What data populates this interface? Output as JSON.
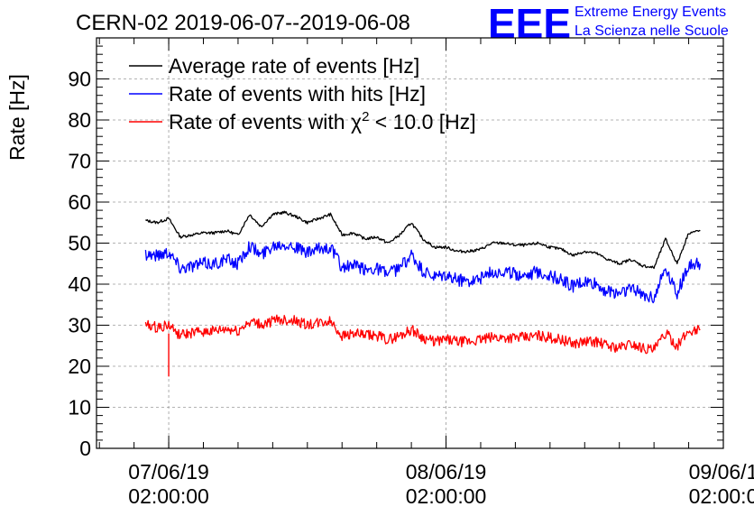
{
  "colors": {
    "average": "#000000",
    "hits": "#0000ff",
    "chi2": "#ff0000",
    "logo": "#0000ff",
    "grid": "#9a9a9a"
  },
  "logo": {
    "mark": "EEE",
    "line1": "Extreme Energy Events",
    "line2": "La Scienza nelle Scuole"
  },
  "chart_data": {
    "type": "line",
    "title": "CERN-02 2019-06-07--2019-06-08",
    "ylabel": "Rate [Hz]",
    "xlabel": "",
    "ylim": [
      0,
      100
    ],
    "yticks": [
      0,
      10,
      20,
      30,
      40,
      50,
      60,
      70,
      80,
      90
    ],
    "xlim": [
      "2019-06-06 19:45",
      "2019-06-09 02:00"
    ],
    "xticks": [
      {
        "date": "07/06/19",
        "time": "02:00:00",
        "at": "2019-06-07 02:00"
      },
      {
        "date": "08/06/19",
        "time": "02:00:00",
        "at": "2019-06-08 02:00"
      },
      {
        "date": "09/06/1",
        "time": "02:00:0",
        "at": "2019-06-09 02:00"
      }
    ],
    "grid": true,
    "legend_position": "top-left",
    "series": [
      {
        "name": "Average rate of events [Hz]",
        "key": "average",
        "x": [
          "2019-06-07 00:00",
          "2019-06-07 01:00",
          "2019-06-07 02:00",
          "2019-06-07 03:00",
          "2019-06-07 04:00",
          "2019-06-07 05:00",
          "2019-06-07 06:00",
          "2019-06-07 07:00",
          "2019-06-07 08:00",
          "2019-06-07 09:00",
          "2019-06-07 10:00",
          "2019-06-07 11:00",
          "2019-06-07 12:00",
          "2019-06-07 13:00",
          "2019-06-07 14:00",
          "2019-06-07 15:00",
          "2019-06-07 16:00",
          "2019-06-07 17:00",
          "2019-06-07 18:00",
          "2019-06-07 19:00",
          "2019-06-07 20:00",
          "2019-06-07 21:00",
          "2019-06-07 22:00",
          "2019-06-07 23:00",
          "2019-06-08 00:00",
          "2019-06-08 01:00",
          "2019-06-08 02:00",
          "2019-06-08 03:00",
          "2019-06-08 04:00",
          "2019-06-08 05:00",
          "2019-06-08 06:00",
          "2019-06-08 07:00",
          "2019-06-08 08:00",
          "2019-06-08 09:00",
          "2019-06-08 10:00",
          "2019-06-08 11:00",
          "2019-06-08 12:00",
          "2019-06-08 13:00",
          "2019-06-08 14:00",
          "2019-06-08 15:00",
          "2019-06-08 16:00",
          "2019-06-08 17:00",
          "2019-06-08 18:00",
          "2019-06-08 19:00",
          "2019-06-08 20:00",
          "2019-06-08 21:00",
          "2019-06-08 22:00",
          "2019-06-08 23:00",
          "2019-06-09 00:00"
        ],
        "values": [
          55.5,
          55.0,
          56.0,
          51.5,
          52.0,
          52.5,
          52.5,
          53.0,
          52.0,
          57.0,
          54.0,
          57.0,
          57.5,
          56.5,
          55.0,
          56.0,
          57.0,
          52.0,
          52.5,
          51.0,
          51.5,
          50.0,
          52.0,
          55.0,
          51.0,
          49.0,
          49.0,
          48.0,
          48.0,
          48.5,
          50.0,
          50.0,
          49.5,
          49.5,
          50.0,
          49.0,
          48.5,
          47.0,
          48.0,
          47.5,
          46.0,
          45.0,
          46.0,
          44.5,
          44.0,
          51.0,
          45.0,
          52.5,
          53.0
        ]
      },
      {
        "name": "Rate of events with hits [Hz]",
        "key": "hits",
        "x": [
          "2019-06-07 00:00",
          "2019-06-07 01:00",
          "2019-06-07 02:00",
          "2019-06-07 03:00",
          "2019-06-07 04:00",
          "2019-06-07 05:00",
          "2019-06-07 06:00",
          "2019-06-07 07:00",
          "2019-06-07 08:00",
          "2019-06-07 09:00",
          "2019-06-07 10:00",
          "2019-06-07 11:00",
          "2019-06-07 12:00",
          "2019-06-07 13:00",
          "2019-06-07 14:00",
          "2019-06-07 15:00",
          "2019-06-07 16:00",
          "2019-06-07 17:00",
          "2019-06-07 18:00",
          "2019-06-07 19:00",
          "2019-06-07 20:00",
          "2019-06-07 21:00",
          "2019-06-07 22:00",
          "2019-06-07 23:00",
          "2019-06-08 00:00",
          "2019-06-08 01:00",
          "2019-06-08 02:00",
          "2019-06-08 03:00",
          "2019-06-08 04:00",
          "2019-06-08 05:00",
          "2019-06-08 06:00",
          "2019-06-08 07:00",
          "2019-06-08 08:00",
          "2019-06-08 09:00",
          "2019-06-08 10:00",
          "2019-06-08 11:00",
          "2019-06-08 12:00",
          "2019-06-08 13:00",
          "2019-06-08 14:00",
          "2019-06-08 15:00",
          "2019-06-08 16:00",
          "2019-06-08 17:00",
          "2019-06-08 18:00",
          "2019-06-08 19:00",
          "2019-06-08 20:00",
          "2019-06-08 21:00",
          "2019-06-08 22:00",
          "2019-06-08 23:00",
          "2019-06-09 00:00"
        ],
        "values": [
          47.5,
          47.0,
          48.0,
          44.0,
          44.5,
          45.0,
          45.0,
          46.0,
          45.0,
          49.5,
          47.0,
          49.5,
          50.0,
          49.0,
          47.5,
          48.5,
          49.0,
          44.0,
          44.5,
          43.5,
          44.0,
          42.5,
          44.0,
          47.0,
          43.0,
          41.5,
          42.0,
          41.0,
          41.0,
          41.5,
          43.0,
          43.0,
          42.5,
          42.5,
          43.0,
          42.0,
          41.0,
          39.5,
          40.5,
          40.0,
          38.0,
          38.0,
          39.0,
          37.5,
          37.0,
          44.0,
          38.0,
          44.5,
          45.0
        ]
      },
      {
        "name": "Rate of events with χ2 < 10.0 [Hz]",
        "key": "chi2",
        "x": [
          "2019-06-07 00:00",
          "2019-06-07 01:00",
          "2019-06-07 02:00",
          "2019-06-07 03:00",
          "2019-06-07 04:00",
          "2019-06-07 05:00",
          "2019-06-07 06:00",
          "2019-06-07 07:00",
          "2019-06-07 08:00",
          "2019-06-07 09:00",
          "2019-06-07 10:00",
          "2019-06-07 11:00",
          "2019-06-07 12:00",
          "2019-06-07 13:00",
          "2019-06-07 14:00",
          "2019-06-07 15:00",
          "2019-06-07 16:00",
          "2019-06-07 17:00",
          "2019-06-07 18:00",
          "2019-06-07 19:00",
          "2019-06-07 20:00",
          "2019-06-07 21:00",
          "2019-06-07 22:00",
          "2019-06-07 23:00",
          "2019-06-08 00:00",
          "2019-06-08 01:00",
          "2019-06-08 02:00",
          "2019-06-08 03:00",
          "2019-06-08 04:00",
          "2019-06-08 05:00",
          "2019-06-08 06:00",
          "2019-06-08 07:00",
          "2019-06-08 08:00",
          "2019-06-08 09:00",
          "2019-06-08 10:00",
          "2019-06-08 11:00",
          "2019-06-08 12:00",
          "2019-06-08 13:00",
          "2019-06-08 14:00",
          "2019-06-08 15:00",
          "2019-06-08 16:00",
          "2019-06-08 17:00",
          "2019-06-08 18:00",
          "2019-06-08 19:00",
          "2019-06-08 20:00",
          "2019-06-08 21:00",
          "2019-06-08 22:00",
          "2019-06-08 23:00",
          "2019-06-09 00:00"
        ],
        "values": [
          30.0,
          29.5,
          30.0,
          27.5,
          28.0,
          28.5,
          28.5,
          29.0,
          28.5,
          31.0,
          30.0,
          31.0,
          31.5,
          31.0,
          30.0,
          30.5,
          31.0,
          27.5,
          28.0,
          27.5,
          27.5,
          26.5,
          27.5,
          29.0,
          27.0,
          26.0,
          26.5,
          26.0,
          26.0,
          26.5,
          27.0,
          27.0,
          27.0,
          27.0,
          27.5,
          27.0,
          26.5,
          25.5,
          26.0,
          26.0,
          25.0,
          24.5,
          25.5,
          24.5,
          24.0,
          28.0,
          25.0,
          28.5,
          29.0
        ],
        "annotation": {
          "x": "2019-06-07 02:00",
          "value": 17.5
        }
      }
    ]
  }
}
